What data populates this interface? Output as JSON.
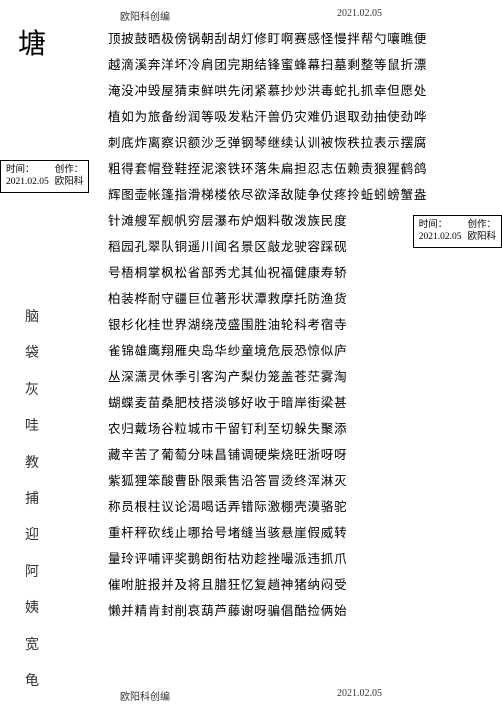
{
  "meta": {
    "header_left": "欧阳科创编",
    "header_right": "2021.02.05",
    "footer_left": "欧阳科创编",
    "footer_right": "2021.02.05"
  },
  "big_char": "塘",
  "side_chars": [
    "脑",
    "袋",
    "灰",
    "哇",
    "教",
    "捕",
    "迎",
    "阿",
    "姨",
    "宽",
    "龟"
  ],
  "lines": [
    "顶披鼓晒极傍锅朝刮胡灯修盯啊赛感怪慢拌帮勺嚷瞧便",
    "越滴溪奔洋坏冷肩团完期结锋蜜蜂幕扫墓剩整等鼠折漂",
    "淹没冲毁屋猜束鲜哄先闭紧慕抄炒洪毒蛇扎抓幸但愿处",
    "植如为旅备纷润等吸发粘汗兽仍灾难仍退取劲抽使劲哗",
    "刺底炸离察识额沙乏弹钢琴继续认训被恢秩拉表示摆腐",
    "粗得套帽登鞋挃泥滚铁环落朱扁担忍志伍赖责狼猩鹤鸽",
    "辉图壶帐篷指滑梯楼依尽欲泽敌陡争仗疼拎蚯蚓螃蟹盎",
    "针滩艘军舰帆穷层瀑布炉烟料敬泼族民度",
    "稻园孔翠队铜遥川闻名景区敲龙驶容踩砚",
    "号梧桐掌枫松省部秀尤其仙祝福健康寿轿",
    "柏装桦耐守疆巨位著形状潭救摩托防渔货",
    "银杉化桂世界湖绕茂盛围胜油轮科考宿寺",
    "雀锦雄鹰翔雁央岛华纱童境危辰恐惊似庐",
    "丛深潇灵休季引客沟产梨仂笼盖苍茫雾淘",
    "蝴蝶麦苗桑肥枝搭淡够好收于暗岸街梁甚",
    "农归戴场谷粒城市干留钉利至切躲失聚添",
    "藏辛苦了葡萄分味昌铺调硬柴烧旺浙呀呀",
    "紫狐狸笨酸曹卧限乘售沿答冒烫终浑淋灭",
    "称员根柱议论渴喝话弄错际激棚壳漠骆驼",
    "重杆秤砍线止哪拾号堵缝当骇悬崖假威转",
    "量玲评哺评奖鹅朗衔枯劝趁挫嘬派违抓爪",
    "催咐脏报并及将且腊狂忆复趟神猪纳闷受",
    "懒并精肯封削哀葫芦藤谢呀骗倡酷捡俩始"
  ],
  "stamps": {
    "left": {
      "time_label": "时间：",
      "time_value": "2021.02.05",
      "author_label": "创作：",
      "author_value": "欧阳科"
    },
    "right": {
      "time_label": "时间：",
      "time_value": "2021.02.05",
      "author_label": "创作：",
      "author_value": "欧阳科"
    }
  },
  "style": {
    "background_color": "#ffffff",
    "text_color": "#000000",
    "main_fontsize": 12.5,
    "main_lineheight": 2.08,
    "side_fontsize": 14,
    "big_fontsize": 28,
    "stamp_fontsize": 9.5,
    "stamp_border": "#000000"
  }
}
